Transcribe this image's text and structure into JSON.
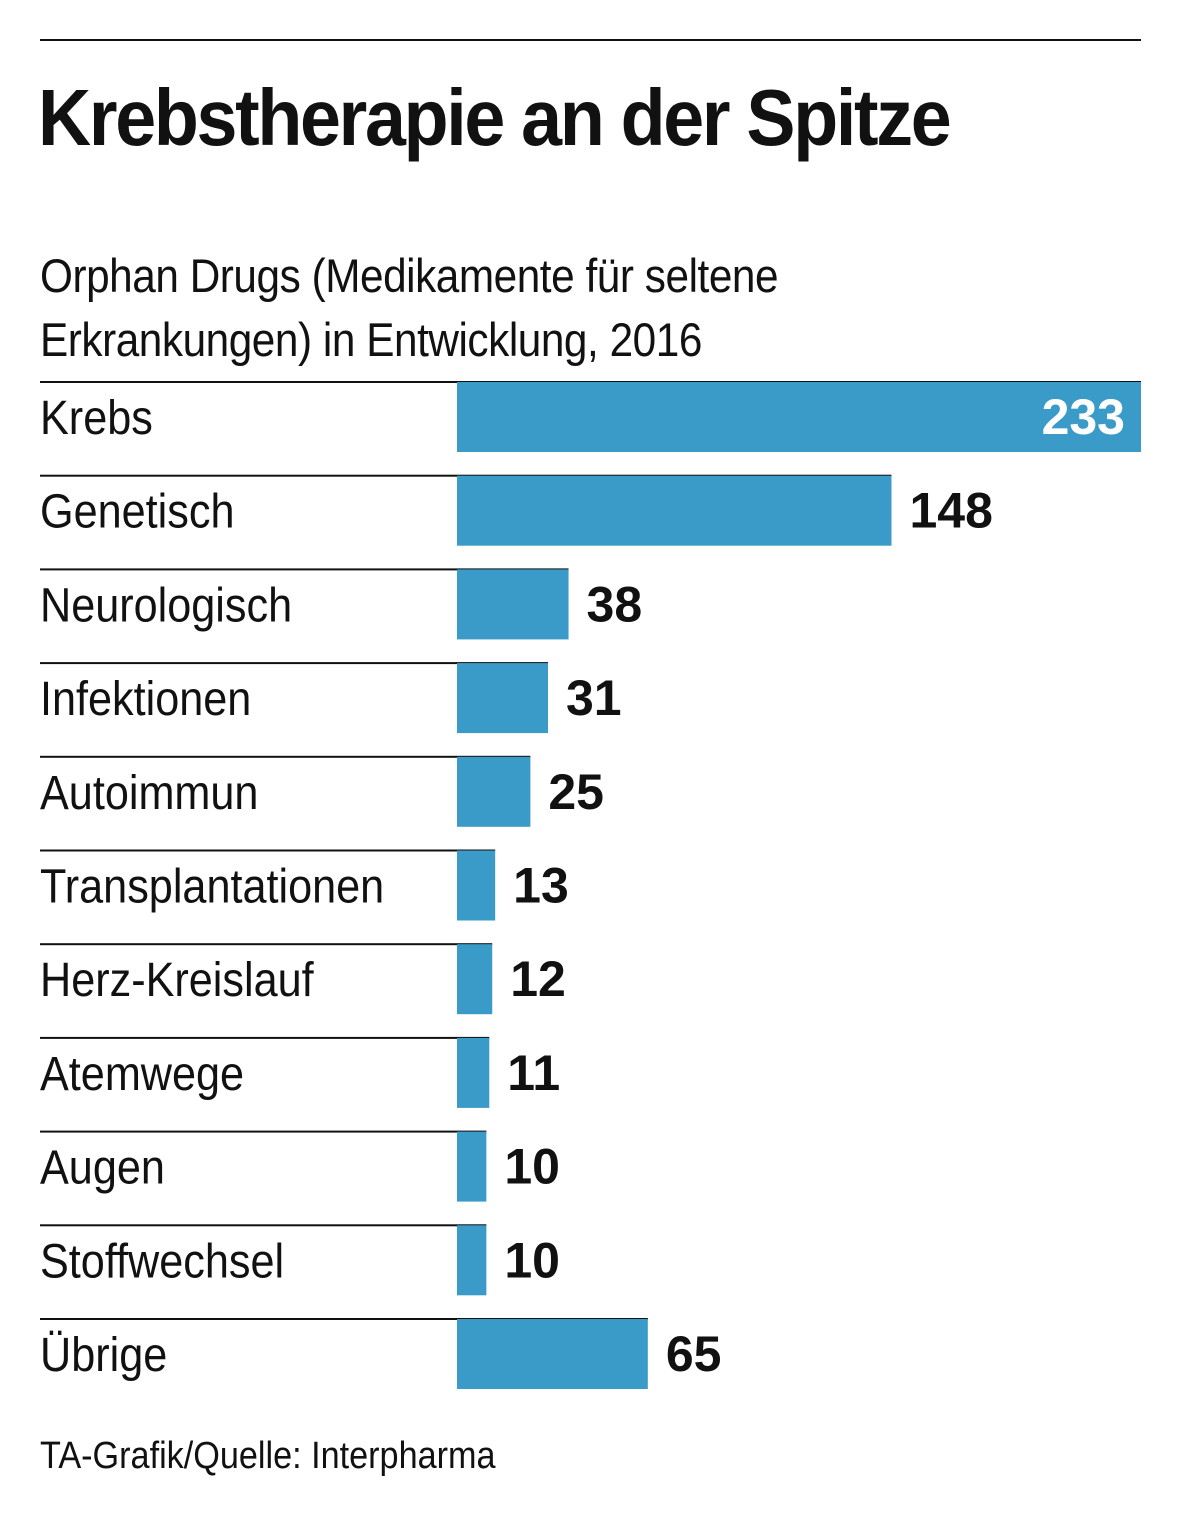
{
  "chart_data": {
    "type": "bar",
    "orientation": "horizontal",
    "title": "Krebstherapie an der Spitze",
    "subtitle": "Orphan Drugs (Medikamente für seltene Erkrankungen) in Entwicklung, 2016",
    "categories": [
      "Krebs",
      "Genetisch",
      "Neurologisch",
      "Infektionen",
      "Autoimmun",
      "Transplantationen",
      "Herz-Kreislauf",
      "Atemwege",
      "Augen",
      "Stoffwechsel",
      "Übrige"
    ],
    "values": [
      233,
      148,
      38,
      31,
      25,
      13,
      12,
      11,
      10,
      10,
      65
    ],
    "xlim": [
      0,
      233
    ],
    "grid": false,
    "legend": "none",
    "source": "TA-Grafik/Quelle: Interpharma"
  },
  "colors": {
    "bar": "#3a9bc9",
    "text": "#111111",
    "label_inside": "#ffffff",
    "rule": "#111111"
  }
}
